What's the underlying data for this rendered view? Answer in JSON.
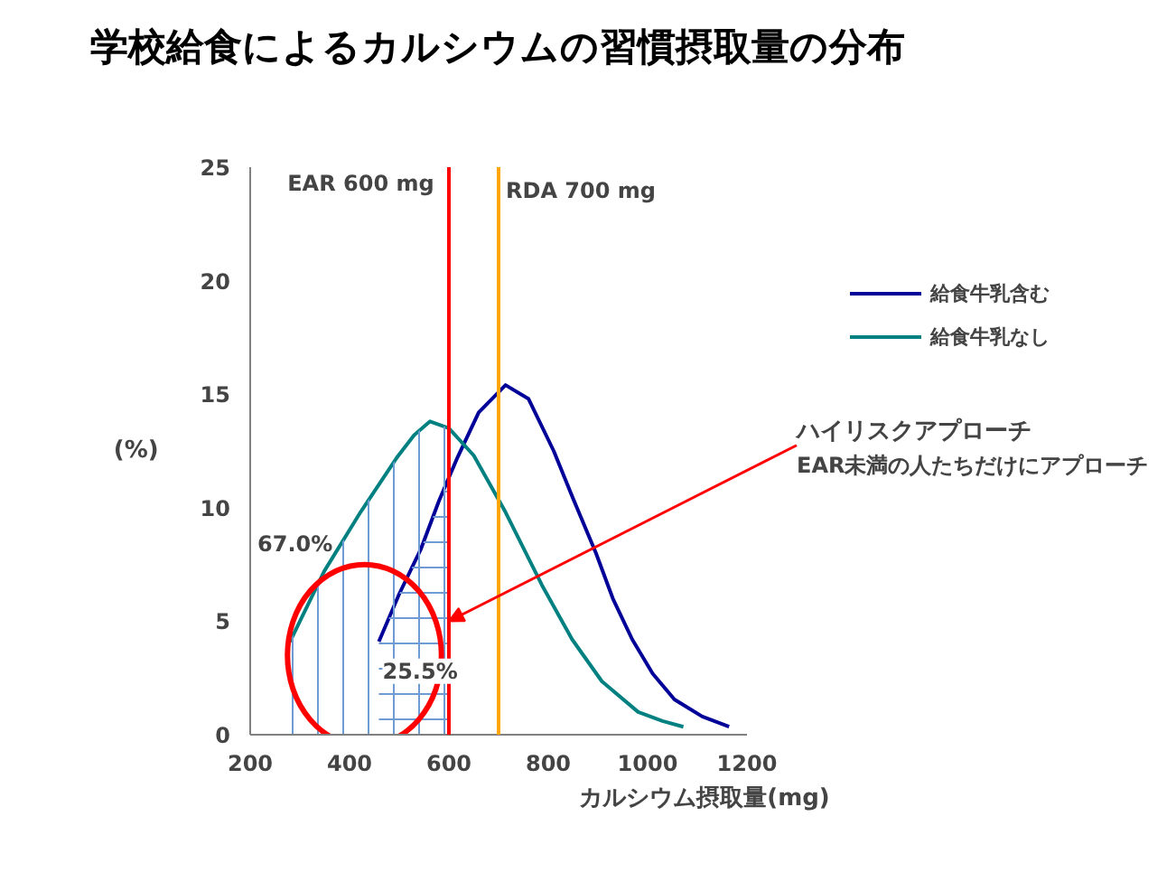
{
  "chart_data": {
    "type": "line",
    "title": "学校給食によるカルシウムの習慣摂取量の分布",
    "xlabel": "カルシウム摂取量(mg)",
    "ylabel": "(%)",
    "series": [
      {
        "name": "給食牛乳含む",
        "color": "#000099",
        "x": [
          459,
          500,
          544,
          580,
          617,
          660,
          714,
          760,
          811,
          850,
          896,
          930,
          969,
          1010,
          1054,
          1110,
          1164
        ],
        "values": [
          4.1,
          6.2,
          8.2,
          10.3,
          12.2,
          14.2,
          15.4,
          14.8,
          12.5,
          10.4,
          8.0,
          6.0,
          4.2,
          2.7,
          1.55,
          0.8,
          0.35
        ]
      },
      {
        "name": "給食牛乳なし",
        "color": "#008080",
        "x": [
          280,
          349,
          422,
          495,
          530,
          562,
          600,
          650,
          714,
          787,
          848,
          908,
          981,
          1030,
          1072
        ],
        "values": [
          4.1,
          7.2,
          9.8,
          12.2,
          13.2,
          13.8,
          13.5,
          12.3,
          9.8,
          6.6,
          4.2,
          2.35,
          1.0,
          0.6,
          0.35
        ]
      },
      {
        "type": "area",
        "color": "#6f9bd5",
        "x": [
          280,
          349,
          422,
          495,
          530,
          562,
          600
        ],
        "values": [
          4.1,
          7.2,
          9.8,
          12.2,
          13.2,
          13.8,
          13.5
        ]
      },
      {
        "type": "area",
        "color": "#6f9bd5",
        "x": [
          459,
          500,
          544,
          580,
          600
        ],
        "values": [
          4.1,
          6.2,
          8.2,
          10.3,
          11.0
        ]
      }
    ],
    "xlim": [
      200,
      1200
    ],
    "xticks": [
      200,
      400,
      600,
      800,
      1000,
      1200
    ],
    "ylim": [
      0,
      25
    ],
    "yticks": [
      0,
      5,
      10,
      15,
      20,
      25
    ],
    "ref_lines": [
      {
        "axis": "x",
        "value": 600,
        "label": "EAR  600 mg",
        "color": "#ff0000"
      },
      {
        "axis": "x",
        "value": 700,
        "label": "RDA  700 mg",
        "color": "#ffa500"
      }
    ],
    "annotations": [
      "67.0%",
      "25.5%",
      {
        "text": "ハイリスクアプローチ",
        "x": 600,
        "y": 5
      },
      "EAR未満の人たちだけにアプローチ"
    ],
    "legend": "top right",
    "grid": false,
    "marker": "none",
    "line_style": "solid"
  }
}
